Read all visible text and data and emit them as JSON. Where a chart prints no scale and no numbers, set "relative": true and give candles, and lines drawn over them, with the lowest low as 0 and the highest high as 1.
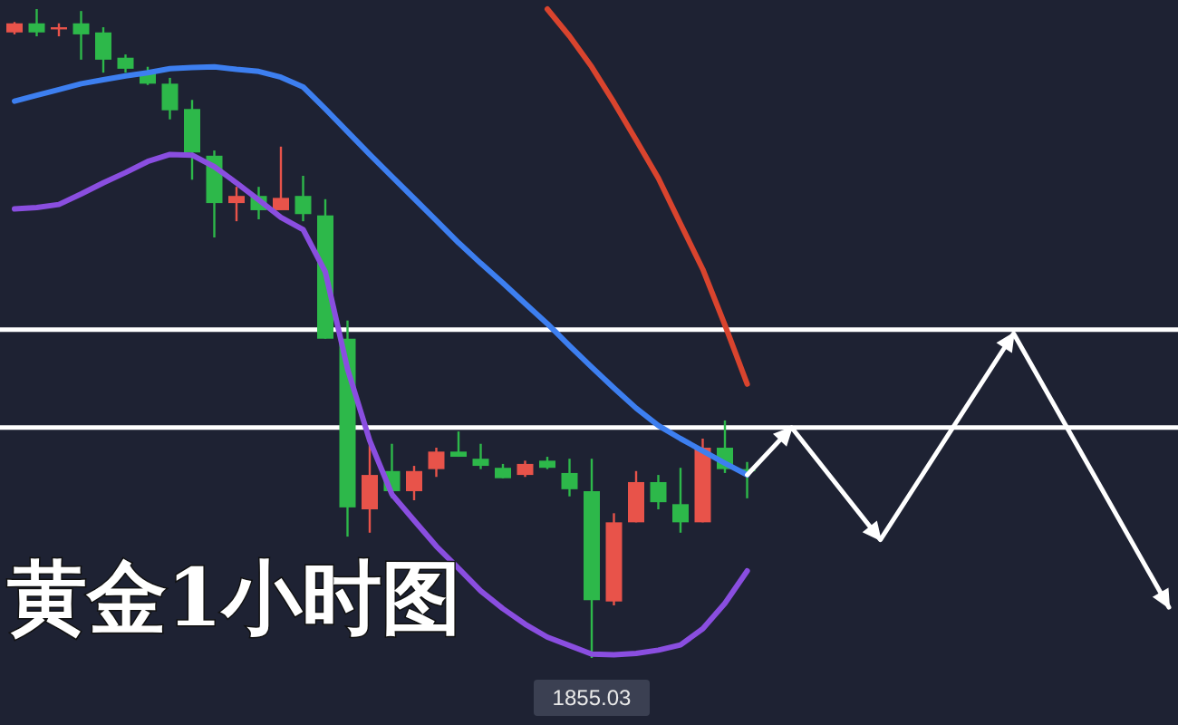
{
  "chart_data": {
    "type": "candlestick",
    "relative": true,
    "title": "黄金1小时图",
    "categories": [
      null,
      null,
      null,
      null,
      null,
      null,
      null,
      null,
      null,
      null,
      null,
      null,
      null,
      null,
      null,
      null,
      null,
      null,
      null,
      null,
      null,
      null,
      null,
      null,
      null,
      null,
      null,
      null,
      null,
      null,
      null,
      null,
      null,
      null,
      null,
      null,
      null,
      null,
      null,
      null,
      null,
      null,
      null,
      null,
      null,
      null,
      null,
      null,
      null,
      null,
      null,
      null,
      null
    ],
    "ohlc": [
      [
        0.964,
        0.98,
        0.961,
        0.978
      ],
      [
        0.978,
        1.0,
        0.958,
        0.964
      ],
      [
        0.969,
        0.978,
        0.958,
        0.972
      ],
      [
        0.978,
        0.997,
        0.922,
        0.961
      ],
      [
        0.964,
        0.972,
        0.902,
        0.922
      ],
      [
        0.925,
        0.93,
        0.902,
        0.908
      ],
      [
        0.902,
        0.911,
        0.883,
        0.885
      ],
      [
        0.885,
        0.894,
        0.83,
        0.844
      ],
      [
        0.846,
        0.86,
        0.737,
        0.779
      ],
      [
        0.774,
        0.782,
        0.648,
        0.701
      ],
      [
        0.701,
        0.726,
        0.673,
        0.712
      ],
      [
        0.712,
        0.726,
        0.676,
        0.69
      ],
      [
        0.69,
        0.788,
        0.69,
        0.709
      ],
      [
        0.712,
        0.743,
        0.673,
        0.684
      ],
      [
        0.682,
        0.707,
        0.492,
        0.492
      ],
      [
        0.492,
        0.52,
        0.187,
        0.232
      ],
      [
        0.229,
        0.335,
        0.193,
        0.282
      ],
      [
        0.288,
        0.33,
        0.246,
        0.257
      ],
      [
        0.257,
        0.296,
        0.243,
        0.288
      ],
      [
        0.291,
        0.324,
        0.279,
        0.318
      ],
      [
        0.318,
        0.349,
        0.31,
        0.31
      ],
      [
        0.307,
        0.33,
        0.291,
        0.296
      ],
      [
        0.293,
        0.299,
        0.277,
        0.277
      ],
      [
        0.282,
        0.304,
        0.279,
        0.299
      ],
      [
        0.304,
        0.31,
        0.291,
        0.293
      ],
      [
        0.285,
        0.307,
        0.249,
        0.26
      ],
      [
        0.257,
        0.307,
        0.0,
        0.089
      ],
      [
        0.087,
        0.223,
        0.081,
        0.209
      ],
      [
        0.209,
        0.288,
        0.209,
        0.271
      ],
      [
        0.271,
        0.282,
        0.229,
        0.24
      ],
      [
        0.237,
        0.293,
        0.193,
        0.209
      ],
      [
        0.209,
        0.338,
        0.209,
        0.324
      ],
      [
        0.324,
        0.366,
        0.285,
        0.291
      ],
      [
        0.291,
        0.302,
        0.246,
        0.288
      ],
      null,
      null,
      null,
      null,
      null,
      null,
      null,
      null,
      null,
      null,
      null,
      null,
      null,
      null,
      null,
      null,
      null,
      null,
      null
    ],
    "colors": [
      "#e8534a",
      "#2db84a",
      "#e8534a",
      "#2db84a",
      "#2db84a",
      "#2db84a",
      "#2db84a",
      "#2db84a",
      "#2db84a",
      "#2db84a",
      "#e8534a",
      "#2db84a",
      "#e8534a",
      "#2db84a",
      "#2db84a",
      "#2db84a",
      "#e8534a",
      "#2db84a",
      "#e8534a",
      "#e8534a",
      "#2db84a",
      "#2db84a",
      "#2db84a",
      "#e8534a",
      "#2db84a",
      "#2db84a",
      "#2db84a",
      "#e8534a",
      "#e8534a",
      "#2db84a",
      "#2db84a",
      "#e8534a",
      "#2db84a",
      "#2db84a",
      null,
      null,
      null,
      null,
      null,
      null,
      null,
      null,
      null,
      null,
      null,
      null,
      null,
      null,
      null,
      null,
      null,
      null,
      null
    ],
    "series": [
      {
        "type": "line",
        "color": "#3d7ff0",
        "values": [
          0.858,
          0.867,
          0.876,
          0.885,
          0.891,
          0.897,
          0.902,
          0.908,
          0.91,
          0.911,
          0.907,
          0.904,
          0.895,
          0.88,
          0.846,
          0.811,
          0.776,
          0.742,
          0.708,
          0.674,
          0.64,
          0.608,
          0.578,
          0.546,
          0.515,
          0.481,
          0.448,
          0.416,
          0.385,
          0.358,
          0.338,
          0.319,
          0.3,
          0.282,
          null,
          null,
          null,
          null,
          null,
          null,
          null,
          null,
          null,
          null,
          null,
          null,
          null,
          null,
          null,
          null,
          null,
          null,
          null
        ]
      },
      {
        "type": "line",
        "color": "#8a4ee0",
        "values": [
          0.692,
          0.694,
          0.699,
          0.715,
          0.732,
          0.748,
          0.765,
          0.776,
          0.775,
          0.757,
          0.732,
          0.706,
          0.679,
          0.66,
          0.595,
          0.445,
          0.335,
          0.252,
          0.212,
          0.172,
          0.138,
          0.103,
          0.076,
          0.052,
          0.032,
          0.019,
          0.006,
          0.005,
          0.007,
          0.012,
          0.02,
          0.045,
          0.084,
          0.134,
          null,
          null,
          null,
          null,
          null,
          null,
          null,
          null,
          null,
          null,
          null,
          null,
          null,
          null,
          null,
          null,
          null,
          null,
          null
        ]
      },
      {
        "type": "line",
        "color": "#d9442e",
        "values": [
          null,
          null,
          null,
          null,
          null,
          null,
          null,
          null,
          null,
          null,
          null,
          null,
          null,
          null,
          null,
          null,
          null,
          null,
          null,
          null,
          null,
          null,
          null,
          null,
          1.0,
          0.958,
          0.911,
          0.856,
          0.798,
          0.739,
          0.669,
          0.599,
          0.513,
          0.422,
          null,
          null,
          null,
          null,
          null,
          null,
          null,
          null,
          null,
          null,
          null,
          null,
          null,
          null,
          null,
          null,
          null,
          null,
          null
        ]
      },
      {
        "type": "line",
        "color": "#ffffff",
        "values": [
          null,
          null,
          null,
          null,
          null,
          null,
          null,
          null,
          null,
          null,
          null,
          null,
          null,
          null,
          null,
          null,
          null,
          null,
          null,
          null,
          null,
          null,
          null,
          null,
          null,
          null,
          null,
          null,
          null,
          null,
          null,
          null,
          null,
          0.282,
          null,
          0.355,
          null,
          null,
          null,
          0.182,
          null,
          null,
          null,
          null,
          null,
          0.5,
          null,
          null,
          null,
          null,
          null,
          null,
          0.078
        ]
      }
    ],
    "ref_lines": [
      {
        "axis": "y",
        "value": 0.506,
        "label": null,
        "color": "#ffffff"
      },
      {
        "axis": "y",
        "value": 0.355,
        "label": null,
        "color": "#ffffff"
      }
    ],
    "annotations": [
      "1855.03"
    ],
    "grid": false
  }
}
